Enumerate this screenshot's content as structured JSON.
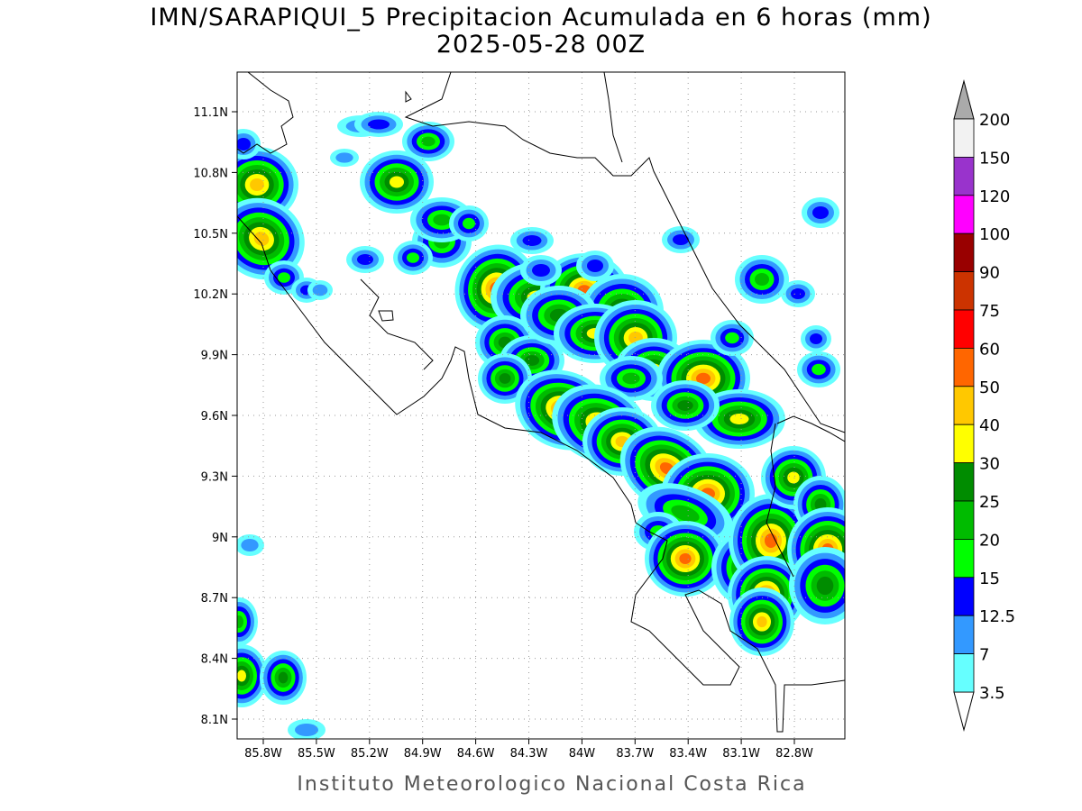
{
  "title": "IMN/SARAPIQUI_5 Precipitacion Acumulada en 6 horas (mm)",
  "subtitle": "2025-05-28 00Z",
  "map": {
    "lat_labels": [
      "11.1N",
      "10.8N",
      "10.5N",
      "10.2N",
      "9.9N",
      "9.6N",
      "9.3N",
      "9N",
      "8.7N",
      "8.4N",
      "8.1N"
    ],
    "lon_labels": [
      "85.8W",
      "85.5W",
      "85.2W",
      "84.9W",
      "84.6W",
      "84.3W",
      "84W",
      "83.7W",
      "83.4W",
      "83.1W",
      "82.8W"
    ]
  },
  "colorbar": {
    "labels": [
      "200",
      "150",
      "120",
      "100",
      "90",
      "75",
      "60",
      "50",
      "40",
      "30",
      "25",
      "20",
      "15",
      "12.5",
      "7",
      "3.5"
    ],
    "colors": [
      "#f2f2f2",
      "#9933cc",
      "#ff00ff",
      "#990000",
      "#cc3300",
      "#ff0000",
      "#ff6600",
      "#ffc800",
      "#ffff00",
      "#008c00",
      "#00bb00",
      "#00ff00",
      "#0000ff",
      "#3399ff",
      "#66ffff"
    ]
  },
  "footer": "Instituto Meteorologico Nacional Costa Rica"
}
